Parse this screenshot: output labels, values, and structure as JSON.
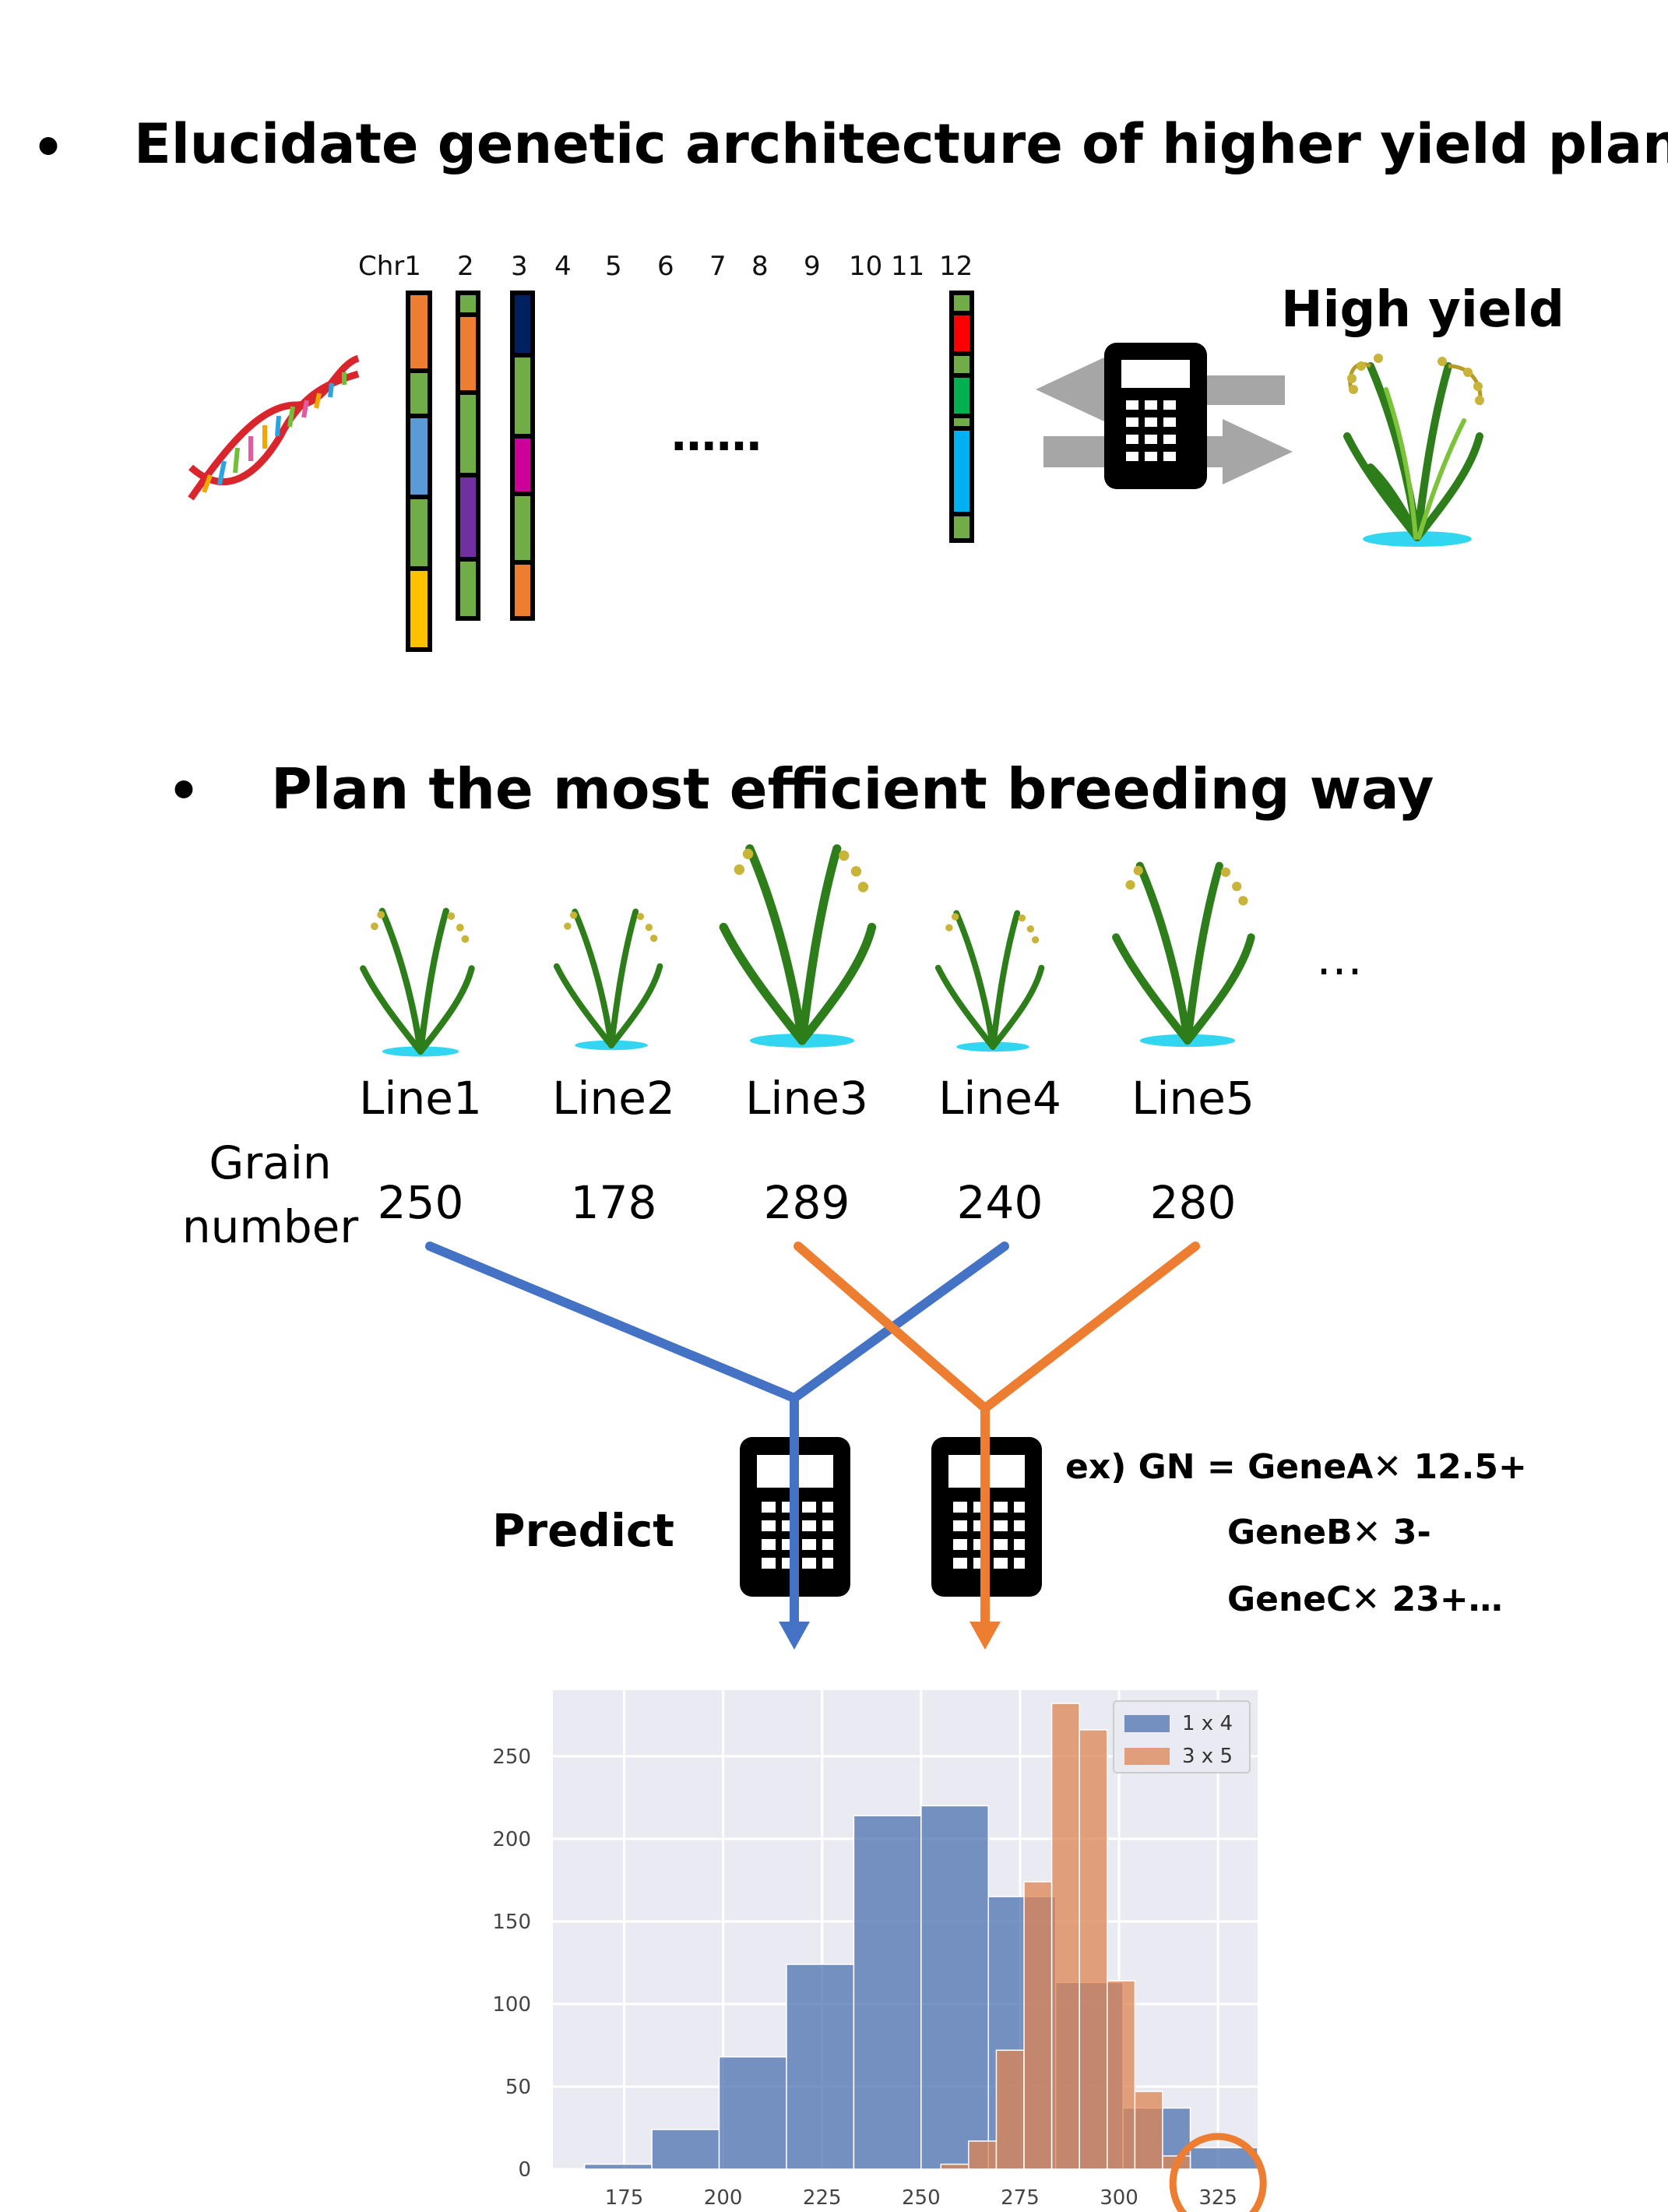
{
  "headings": {
    "top": "Elucidate genetic architecture of higher yield plant",
    "second": "Plan the most efficient breeding way",
    "bullet": "•"
  },
  "chromosomes": {
    "labels": [
      "Chr1",
      "2",
      "3",
      "4",
      "5",
      "6",
      "7",
      "8",
      "9",
      "10",
      "11",
      "12"
    ],
    "ellipsis": "……"
  },
  "high_yield": "High yield",
  "lines": [
    {
      "label": "Line1",
      "grain_number": "250"
    },
    {
      "label": "Line2",
      "grain_number": "178"
    },
    {
      "label": "Line3",
      "grain_number": "289"
    },
    {
      "label": "Line4",
      "grain_number": "240"
    },
    {
      "label": "Line5",
      "grain_number": "280"
    }
  ],
  "lines_ellipsis": "…",
  "grain_number_label": {
    "line1": "Grain",
    "line2": "number"
  },
  "predict_label": "Predict",
  "formula": {
    "line1": "ex) GN = GeneA✕ 12.5+",
    "line2": "GeneB✕ 3-",
    "line3": "GeneC✕ 23+…"
  },
  "colors": {
    "blue": "#4472c4",
    "orange": "#ed7d31",
    "hist_blue": "#4c72b0",
    "hist_orange": "#dd8452",
    "plot_bg": "#eaeaf2",
    "grey_arrow": "#a6a6a6",
    "highlight_circle": "#ed7d31"
  },
  "icons": {
    "dna": "dna-icon",
    "calculator": "calculator-icon",
    "plant": "rice-plant-icon",
    "arrows": "bidirectional-arrow-icon"
  },
  "chart_data": {
    "type": "bar",
    "x_ticks": [
      175,
      200,
      225,
      250,
      275,
      300,
      325
    ],
    "y_ticks": [
      0,
      50,
      100,
      150,
      200,
      250
    ],
    "xlim": [
      157,
      335
    ],
    "ylim": [
      0,
      290
    ],
    "grid": true,
    "legend_position": "top-right",
    "series": [
      {
        "name": "1 x 4",
        "bins": [
          [
            165,
            182
          ],
          [
            182,
            199
          ],
          [
            199,
            216
          ],
          [
            216,
            233
          ],
          [
            233,
            250
          ],
          [
            250,
            267
          ],
          [
            267,
            284
          ],
          [
            284,
            301
          ],
          [
            301,
            318
          ],
          [
            318,
            335
          ]
        ],
        "values": [
          3,
          24,
          68,
          124,
          214,
          220,
          165,
          113,
          37,
          13
        ]
      },
      {
        "name": "3 x 5",
        "bins": [
          [
            255,
            262
          ],
          [
            262,
            269
          ],
          [
            269,
            276
          ],
          [
            276,
            283
          ],
          [
            283,
            290
          ],
          [
            290,
            297
          ],
          [
            297,
            304
          ],
          [
            304,
            311
          ],
          [
            311,
            318
          ]
        ],
        "values": [
          3,
          17,
          72,
          174,
          282,
          266,
          114,
          47,
          8
        ]
      }
    ]
  }
}
